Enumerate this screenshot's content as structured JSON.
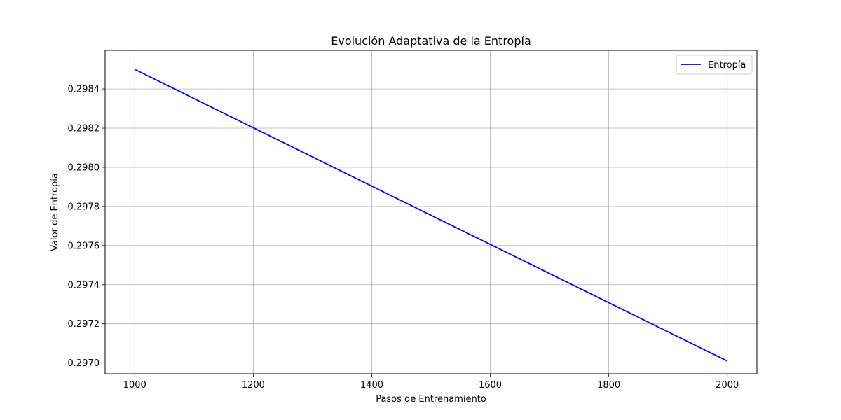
{
  "chart_data": {
    "type": "line",
    "title": "Evolución Adaptativa de la Entropía",
    "xlabel": "Pasos de Entrenamiento",
    "ylabel": "Valor de Entropía",
    "xlim": [
      950,
      2050
    ],
    "ylim": [
      0.296945,
      0.298597
    ],
    "xticks": [
      1000,
      1200,
      1400,
      1600,
      1800,
      2000
    ],
    "xtick_labels": [
      "1000",
      "1200",
      "1400",
      "1600",
      "1800",
      "2000"
    ],
    "yticks": [
      0.297,
      0.2972,
      0.2974,
      0.2976,
      0.2978,
      0.298,
      0.2982,
      0.2984
    ],
    "ytick_labels": [
      "0.2970",
      "0.2972",
      "0.2974",
      "0.2976",
      "0.2978",
      "0.2980",
      "0.2982",
      "0.2984"
    ],
    "grid": true,
    "legend_position": "upper right",
    "series": [
      {
        "name": "Entropía",
        "color": "#0000ff",
        "x": [
          1000,
          2000
        ],
        "y": [
          0.2985,
          0.29701
        ]
      }
    ]
  }
}
